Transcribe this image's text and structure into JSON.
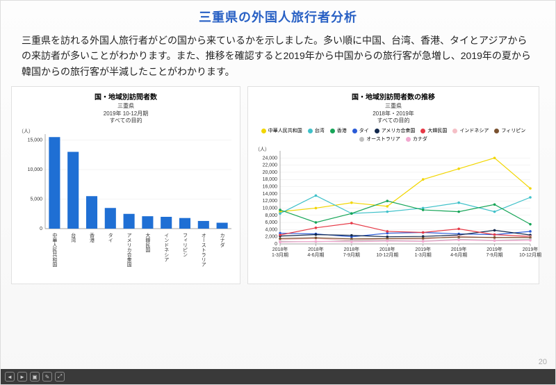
{
  "title": {
    "text": "三重県の外国人旅行者分析",
    "color": "#2860c4",
    "fontsize": 18
  },
  "paragraph": "三重県を訪れる外国人旅行者がどの国から来ているかを示しました。多い順に中国、台湾、香港、タイとアジアからの来訪者が多いことがわかります。また、推移を確認すると2019年から中国からの旅行客が急増し、2019年の夏から韓国からの旅行客が半減したことがわかります。",
  "page_number": "20",
  "bar_chart": {
    "type": "bar",
    "title": "国・地域別訪問者数",
    "sub1": "三重県",
    "sub2": "2019年 10-12月期",
    "sub3": "すべての目的",
    "ylabel": "（人）",
    "categories": [
      "中華人民共和国",
      "台湾",
      "香港",
      "タイ",
      "アメリカ合衆国",
      "大韓民国",
      "インドネシア",
      "フィリピン",
      "オーストラリア",
      "カナダ"
    ],
    "values": [
      15500,
      13000,
      5500,
      3500,
      2500,
      2100,
      2000,
      1800,
      1300,
      1000
    ],
    "bar_color": "#1f6fd4",
    "ylim": [
      0,
      16000
    ],
    "yticks": [
      0,
      5000,
      10000,
      15000
    ],
    "grid_color": "#e8e8e8",
    "background_color": "#ffffff"
  },
  "line_chart": {
    "type": "line",
    "title": "国・地域別訪問者数の推移",
    "sub1": "三重県",
    "sub2": "2018年・2019年",
    "sub3": "すべての目的",
    "ylabel": "（人）",
    "x_labels": [
      "2018年\n1-3月期",
      "2018年\n4-6月期",
      "2018年\n7-9月期",
      "2018年\n10-12月期",
      "2019年\n1-3月期",
      "2019年\n4-6月期",
      "2019年\n7-9月期",
      "2019年\n10-12月期"
    ],
    "ylim": [
      0,
      26000
    ],
    "yticks": [
      0,
      2000,
      4000,
      6000,
      8000,
      10000,
      12000,
      14000,
      16000,
      18000,
      20000,
      22000,
      24000
    ],
    "grid_color": "#e8e8e8",
    "series": [
      {
        "name": "中華人民共和国",
        "color": "#f2d600",
        "values": [
          9000,
          10000,
          11500,
          10500,
          18000,
          21000,
          24000,
          15500
        ]
      },
      {
        "name": "台湾",
        "color": "#3fc1c9",
        "values": [
          8500,
          13500,
          8500,
          9000,
          10000,
          11500,
          9000,
          13000
        ]
      },
      {
        "name": "香港",
        "color": "#17a558",
        "values": [
          9500,
          6000,
          8500,
          12000,
          9500,
          9000,
          11000,
          5500
        ]
      },
      {
        "name": "タイ",
        "color": "#2a5bd7",
        "values": [
          3000,
          2800,
          2000,
          3000,
          3200,
          2800,
          2600,
          3500
        ]
      },
      {
        "name": "アメリカ合衆国",
        "color": "#12284c",
        "values": [
          2200,
          2600,
          2400,
          2000,
          2100,
          2500,
          3800,
          2500
        ]
      },
      {
        "name": "大韓民国",
        "color": "#e63946",
        "values": [
          2500,
          4500,
          5800,
          3500,
          3200,
          4200,
          2600,
          2100
        ]
      },
      {
        "name": "インドネシア",
        "color": "#f5bfc6",
        "values": [
          1200,
          1500,
          1000,
          1400,
          1300,
          2200,
          1700,
          2000
        ]
      },
      {
        "name": "フィリピン",
        "color": "#7a5230",
        "values": [
          1500,
          1700,
          1400,
          1500,
          1600,
          1900,
          1800,
          1800
        ]
      },
      {
        "name": "オーストラリア",
        "color": "#bfbfbf",
        "values": [
          700,
          600,
          900,
          1000,
          800,
          1300,
          1000,
          1300
        ]
      },
      {
        "name": "カナダ",
        "color": "#f2a8d0",
        "values": [
          500,
          700,
          600,
          800,
          700,
          1100,
          900,
          1000
        ]
      }
    ]
  },
  "footer_buttons": [
    "◄",
    "►",
    "▣",
    "✎",
    "⤢"
  ]
}
